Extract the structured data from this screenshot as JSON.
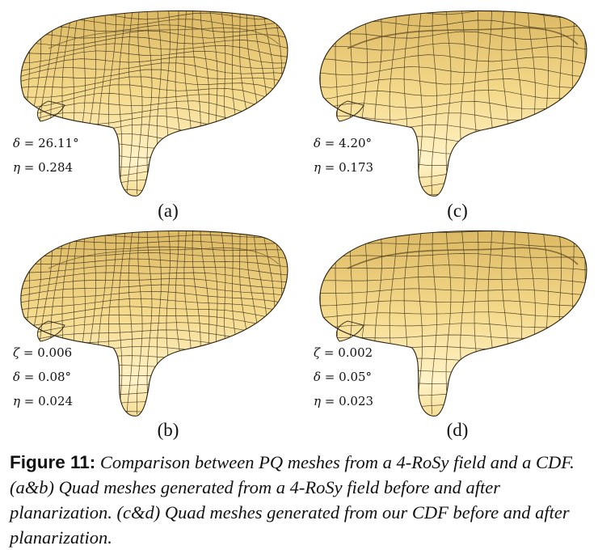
{
  "panels": [
    {
      "id": "a",
      "label": "(a)",
      "stats": [
        {
          "sym": "δ",
          "eq": " = ",
          "val": "26.11°"
        },
        {
          "sym": "η",
          "eq": " = ",
          "val": "0.284"
        }
      ]
    },
    {
      "id": "c",
      "label": "(c)",
      "stats": [
        {
          "sym": "δ",
          "eq": " = ",
          "val": "4.20°"
        },
        {
          "sym": "η",
          "eq": " = ",
          "val": "0.173"
        }
      ]
    },
    {
      "id": "b",
      "label": "(b)",
      "stats": [
        {
          "sym": "ζ",
          "eq": " = ",
          "val": "0.006"
        },
        {
          "sym": "δ",
          "eq": " = ",
          "val": "0.08°"
        },
        {
          "sym": "η",
          "eq": " = ",
          "val": "0.024"
        }
      ]
    },
    {
      "id": "d",
      "label": "(d)",
      "stats": [
        {
          "sym": "ζ",
          "eq": " = ",
          "val": "0.002"
        },
        {
          "sym": "δ",
          "eq": " = ",
          "val": "0.05°"
        },
        {
          "sym": "η",
          "eq": " = ",
          "val": "0.023"
        }
      ]
    }
  ],
  "caption": {
    "figure_label": "Figure 11:",
    "text": "Comparison between PQ meshes from a 4-RoSy field and a CDF. (a&b) Quad meshes generated from a 4-RoSy field before and after planarization. (c&d) Quad meshes generated from our CDF before and after planarization."
  },
  "colors": {
    "mesh_fill": "#f4d98a",
    "mesh_shade": "#d9b55f",
    "mesh_light": "#fff3c8",
    "grid": "#3a2f1a"
  }
}
